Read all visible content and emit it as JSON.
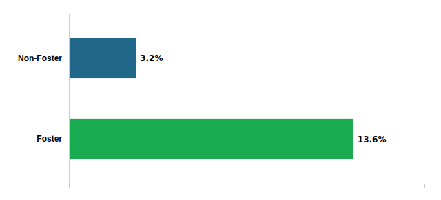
{
  "chart_data": {
    "type": "bar",
    "orientation": "horizontal",
    "categories": [
      "Foster",
      "Non-Foster"
    ],
    "values": [
      13.6,
      3.2
    ],
    "value_labels": [
      "13.6%",
      "3.2%"
    ],
    "colors": [
      "#1aab50",
      "#20678a"
    ],
    "xlim": [
      0,
      17
    ],
    "data_labels": true,
    "tick_labels": "y",
    "grid": false
  }
}
